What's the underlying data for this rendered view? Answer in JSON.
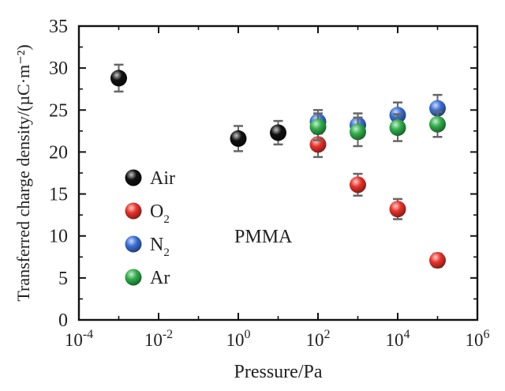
{
  "chart_data": {
    "type": "scatter",
    "xlabel": "Pressure/Pa",
    "ylabel": "Transferred charge density/(µC·m⁻²)",
    "x_scale": "log",
    "xlim": [
      0.0001,
      1000000
    ],
    "ylim": [
      0,
      35
    ],
    "grid": false,
    "legend_placement": "left-middle",
    "annotation": "PMMA",
    "x_ticks": [
      {
        "value": 0.0001,
        "base": "10",
        "exp": "-4"
      },
      {
        "value": 0.01,
        "base": "10",
        "exp": "-2"
      },
      {
        "value": 1,
        "base": "10",
        "exp": "0"
      },
      {
        "value": 100,
        "base": "10",
        "exp": "2"
      },
      {
        "value": 10000,
        "base": "10",
        "exp": "4"
      },
      {
        "value": 1000000,
        "base": "10",
        "exp": "6"
      }
    ],
    "y_ticks": [
      "0",
      "5",
      "10",
      "15",
      "20",
      "25",
      "30",
      "35"
    ],
    "series": [
      {
        "name": "Air",
        "label_main": "Air",
        "label_sub": "",
        "color": "#111111",
        "points": [
          {
            "x": 0.001,
            "y": 28.8,
            "err": 1.6
          },
          {
            "x": 1,
            "y": 21.6,
            "err": 1.5
          },
          {
            "x": 10,
            "y": 22.3,
            "err": 1.4
          }
        ]
      },
      {
        "name": "O2",
        "label_main": "O",
        "label_sub": "2",
        "color": "#e8322a",
        "points": [
          {
            "x": 100,
            "y": 20.9,
            "err": 1.5
          },
          {
            "x": 1000,
            "y": 16.1,
            "err": 1.3
          },
          {
            "x": 10000,
            "y": 13.2,
            "err": 1.2
          },
          {
            "x": 100000,
            "y": 7.1,
            "err": 0.8
          }
        ]
      },
      {
        "name": "N2",
        "label_main": "N",
        "label_sub": "2",
        "color": "#3a6fd8",
        "points": [
          {
            "x": 100,
            "y": 23.6,
            "err": 1.4
          },
          {
            "x": 1000,
            "y": 23.2,
            "err": 1.4
          },
          {
            "x": 10000,
            "y": 24.4,
            "err": 1.5
          },
          {
            "x": 100000,
            "y": 25.2,
            "err": 1.6
          }
        ]
      },
      {
        "name": "Ar",
        "label_main": "Ar",
        "label_sub": "",
        "color": "#2fae4a",
        "points": [
          {
            "x": 100,
            "y": 23.0,
            "err": 1.6
          },
          {
            "x": 1000,
            "y": 22.4,
            "err": 1.7
          },
          {
            "x": 10000,
            "y": 22.9,
            "err": 1.6
          },
          {
            "x": 100000,
            "y": 23.3,
            "err": 1.5
          }
        ]
      }
    ]
  }
}
